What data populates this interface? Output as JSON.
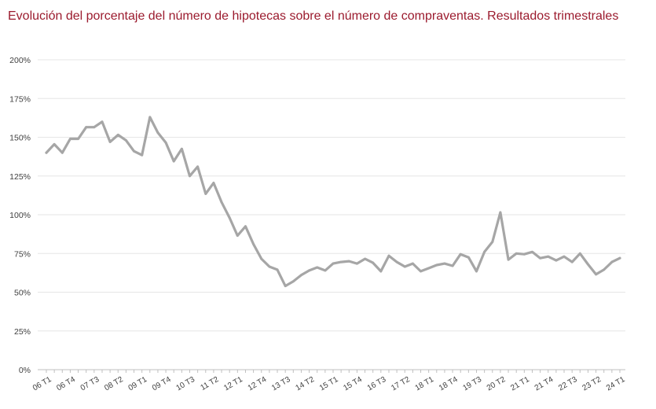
{
  "colors": {
    "title": "#9b1b2e",
    "series": "#a6a6a6",
    "grid": "#e6e6e6",
    "axis": "#bfbfbf"
  },
  "chart_data": {
    "type": "line",
    "title": "Evolución del porcentaje del número de hipotecas sobre el número de compraventas. Resultados trimestrales",
    "xlabel": "",
    "ylabel": "",
    "ylim": [
      0,
      200
    ],
    "y_ticks": [
      "0%",
      "25%",
      "50%",
      "75%",
      "100%",
      "125%",
      "150%",
      "175%",
      "200%"
    ],
    "grid": true,
    "legend": "none",
    "x": [
      "06 T1",
      "06 T2",
      "06 T3",
      "06 T4",
      "07 T1",
      "07 T2",
      "07 T3",
      "07 T4",
      "08 T1",
      "08 T2",
      "08 T3",
      "08 T4",
      "09 T1",
      "09 T2",
      "09 T3",
      "09 T4",
      "10 T1",
      "10 T2",
      "10 T3",
      "10 T4",
      "11 T1",
      "11 T2",
      "11 T3",
      "11 T4",
      "12 T1",
      "12 T2",
      "12 T3",
      "12 T4",
      "13 T1",
      "13 T2",
      "13 T3",
      "13 T4",
      "14 T1",
      "14 T2",
      "14 T3",
      "14 T4",
      "15 T1",
      "15 T2",
      "15 T3",
      "15 T4",
      "16 T1",
      "16 T2",
      "16 T3",
      "16 T4",
      "17 T1",
      "17 T2",
      "17 T3",
      "17 T4",
      "18 T1",
      "18 T2",
      "18 T3",
      "18 T4",
      "19 T1",
      "19 T2",
      "19 T3",
      "19 T4",
      "20 T1",
      "20 T2",
      "20 T3",
      "20 T4",
      "21 T1",
      "21 T2",
      "21 T3",
      "21 T4",
      "22 T1",
      "22 T2",
      "22 T3",
      "22 T4",
      "23 T1",
      "23 T2",
      "23 T3",
      "23 T4",
      "24 T1"
    ],
    "x_tick_labels": [
      {
        "index": 0,
        "label": "06 T1"
      },
      {
        "index": 3,
        "label": "06 T4"
      },
      {
        "index": 6,
        "label": "07 T3"
      },
      {
        "index": 9,
        "label": "08 T2"
      },
      {
        "index": 12,
        "label": "09 T1"
      },
      {
        "index": 15,
        "label": "09 T4"
      },
      {
        "index": 18,
        "label": "10 T3"
      },
      {
        "index": 21,
        "label": "11 T2"
      },
      {
        "index": 24,
        "label": "12 T1"
      },
      {
        "index": 27,
        "label": "12 T4"
      },
      {
        "index": 30,
        "label": "13 T3"
      },
      {
        "index": 33,
        "label": "14 T2"
      },
      {
        "index": 36,
        "label": "15 T1"
      },
      {
        "index": 39,
        "label": "15 T4"
      },
      {
        "index": 42,
        "label": "16 T3"
      },
      {
        "index": 45,
        "label": "17 T2"
      },
      {
        "index": 48,
        "label": "18 T1"
      },
      {
        "index": 51,
        "label": "18 T4"
      },
      {
        "index": 54,
        "label": "19 T3"
      },
      {
        "index": 57,
        "label": "20 T2"
      },
      {
        "index": 60,
        "label": "21 T1"
      },
      {
        "index": 63,
        "label": "21 T4"
      },
      {
        "index": 66,
        "label": "22 T3"
      },
      {
        "index": 69,
        "label": "23 T2"
      },
      {
        "index": 72,
        "label": "24 T1"
      }
    ],
    "series": [
      {
        "values": [
          140,
          145.5,
          140,
          149,
          149,
          156.5,
          156.5,
          160,
          147,
          151.5,
          148,
          141,
          138.5,
          163,
          153,
          146.5,
          134.5,
          142.5,
          125,
          131,
          113.5,
          120.5,
          108,
          98,
          86.5,
          92.5,
          81,
          71.5,
          66.5,
          64.5,
          54,
          57,
          61,
          64,
          66,
          64,
          68.5,
          69.5,
          70,
          68.5,
          71.5,
          69,
          63.5,
          73.5,
          69.5,
          66.5,
          68.5,
          63.5,
          65.5,
          67.5,
          68.5,
          67,
          74.5,
          72.5,
          63.5,
          76,
          82.5,
          101.5,
          71,
          75,
          74.5,
          76,
          72,
          73,
          70.5,
          73,
          69.5,
          75,
          68,
          61.5,
          64.5,
          69.5,
          72
        ]
      }
    ]
  }
}
